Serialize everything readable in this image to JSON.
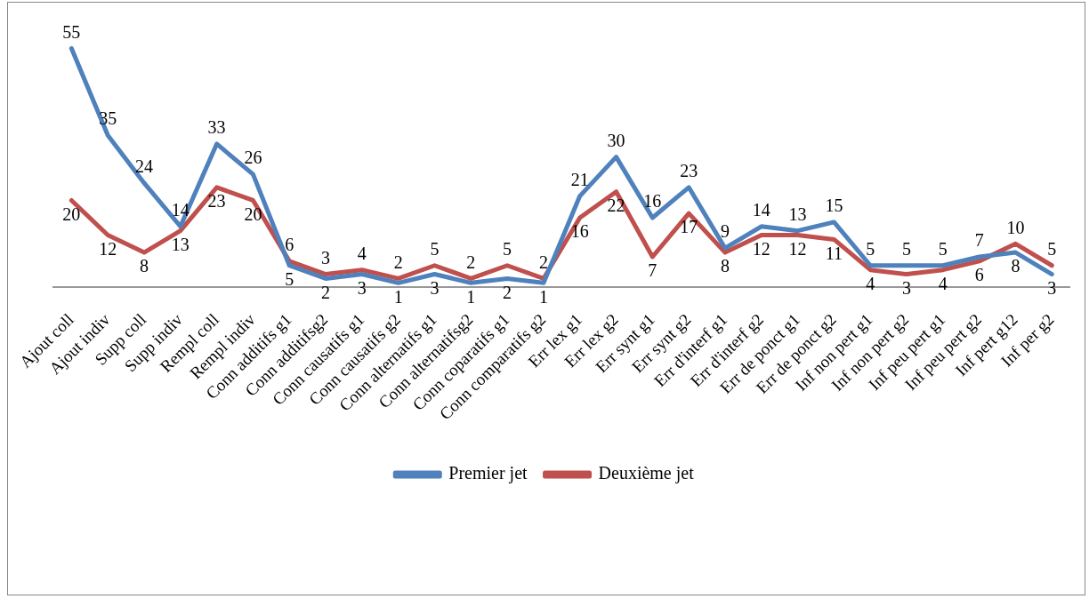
{
  "chart_data": {
    "type": "line",
    "categories": [
      "Ajout coll",
      "Ajout indiv",
      "Supp coll",
      "Supp indiv",
      "Rempl coll",
      "Rempl indiv",
      "Conn additifs g1",
      "Conn additifsg2",
      "Conn causatifs g1",
      "Conn causatifs g2",
      "Conn alternatifs g1",
      "Conn alternatifsg2",
      "Conn coparatifs g1",
      "Conn comparatifs g2",
      "Err lex g1",
      "Err lex g2",
      "Err synt g1",
      "Err synt g2",
      "Err d'interf g1",
      "Err d'interf g2",
      "Err de ponct g1",
      "Err de ponct g2",
      "Inf non pert g1",
      "Inf non pert g2",
      "Inf peu pert g1",
      "Inf peu pert g2",
      "Inf pert g12",
      "Inf per g2"
    ],
    "series": [
      {
        "name": "Premier jet",
        "color": "#4f81bd",
        "values": [
          55,
          35,
          24,
          14,
          33,
          26,
          5,
          2,
          3,
          1,
          3,
          1,
          2,
          1,
          21,
          30,
          16,
          23,
          9,
          14,
          13,
          15,
          5,
          5,
          5,
          7,
          8,
          3
        ]
      },
      {
        "name": "Deuxième jet",
        "color": "#c0504d",
        "values": [
          20,
          12,
          8,
          13,
          23,
          20,
          6,
          3,
          4,
          2,
          5,
          2,
          5,
          2,
          16,
          22,
          7,
          17,
          8,
          12,
          12,
          11,
          4,
          3,
          4,
          6,
          10,
          5
        ]
      }
    ],
    "tick_labels": "x",
    "grid": false,
    "legend": "bottom",
    "marker": "none",
    "line_style": "solid",
    "data_labels": true
  }
}
